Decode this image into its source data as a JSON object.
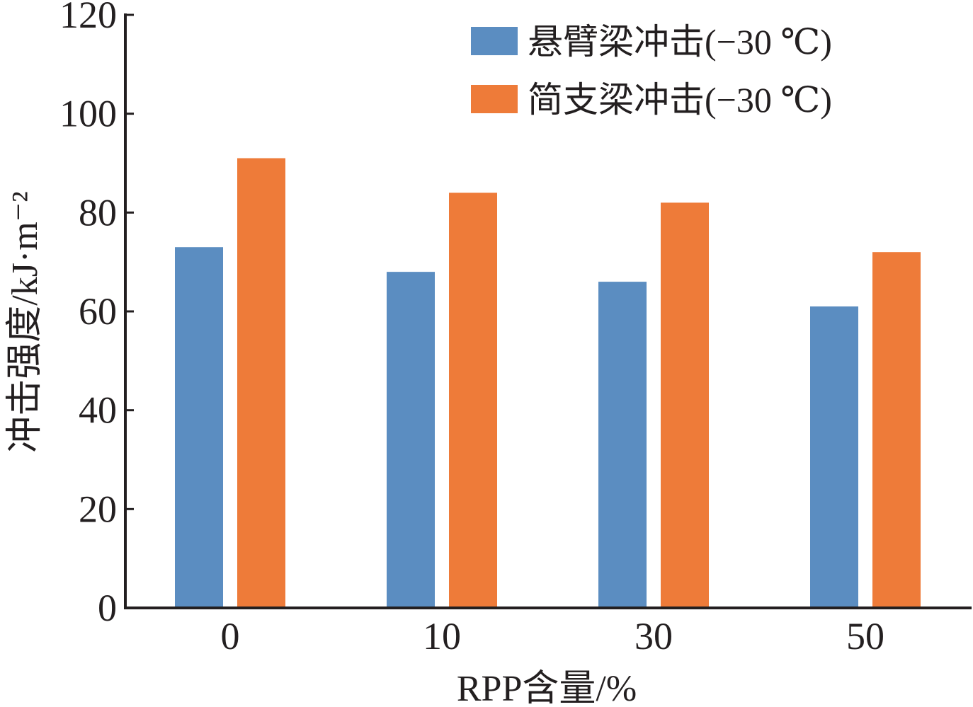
{
  "chart_data": {
    "type": "bar",
    "title": "",
    "xlabel": "RPP含量/%",
    "ylabel": "冲击强度/kJ·m⁻²",
    "categories": [
      "0",
      "10",
      "30",
      "50"
    ],
    "series": [
      {
        "name": "悬臂梁冲击(−30 ℃)",
        "color": "#5b8dc1",
        "values": [
          73,
          68,
          66,
          61
        ]
      },
      {
        "name": "简支梁冲击(−30 ℃)",
        "color": "#ee7b39",
        "values": [
          91,
          84,
          82,
          72
        ]
      }
    ],
    "ylim": [
      0,
      120
    ],
    "yticks": [
      "0",
      "20",
      "40",
      "60",
      "80",
      "100",
      "120"
    ],
    "grid": false,
    "legend": "top-right"
  }
}
